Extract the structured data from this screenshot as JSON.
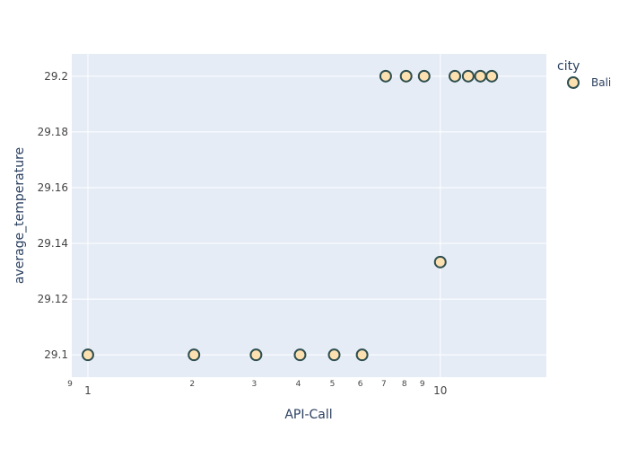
{
  "chart_data": {
    "type": "scatter",
    "title": "",
    "xlabel": "API-Call",
    "ylabel": "average_temperature",
    "xscale": "log",
    "xlim": [
      0.9,
      20
    ],
    "ylim": [
      29.092,
      29.208
    ],
    "y_ticks": [
      29.1,
      29.12,
      29.14,
      29.16,
      29.18,
      29.2
    ],
    "y_tick_labels": [
      "29.1",
      "29.12",
      "29.14",
      "29.16",
      "29.18",
      "29.2"
    ],
    "x_major_ticks": [
      {
        "value": 1,
        "label": "1"
      },
      {
        "value": 10,
        "label": "10"
      }
    ],
    "x_minor_ticks": [
      {
        "value": 0.9,
        "label": "9"
      },
      {
        "value": 2,
        "label": "2"
      },
      {
        "value": 3,
        "label": "3"
      },
      {
        "value": 4,
        "label": "4"
      },
      {
        "value": 5,
        "label": "5"
      },
      {
        "value": 6,
        "label": "6"
      },
      {
        "value": 7,
        "label": "7"
      },
      {
        "value": 8,
        "label": "8"
      },
      {
        "value": 9,
        "label": "9"
      }
    ],
    "legend_title": "city",
    "legend_position": "top-right",
    "series": [
      {
        "name": "Bali",
        "color": "#fde0b0",
        "edge_color": "#2f4f4f",
        "x": [
          1,
          2,
          3,
          4,
          5,
          6,
          7,
          8,
          9,
          10,
          11,
          12,
          13,
          14
        ],
        "y": [
          29.1,
          29.1,
          29.1,
          29.1,
          29.1,
          29.1,
          29.2,
          29.2,
          29.2,
          29.1333,
          29.2,
          29.2,
          29.2,
          29.2
        ]
      }
    ]
  }
}
